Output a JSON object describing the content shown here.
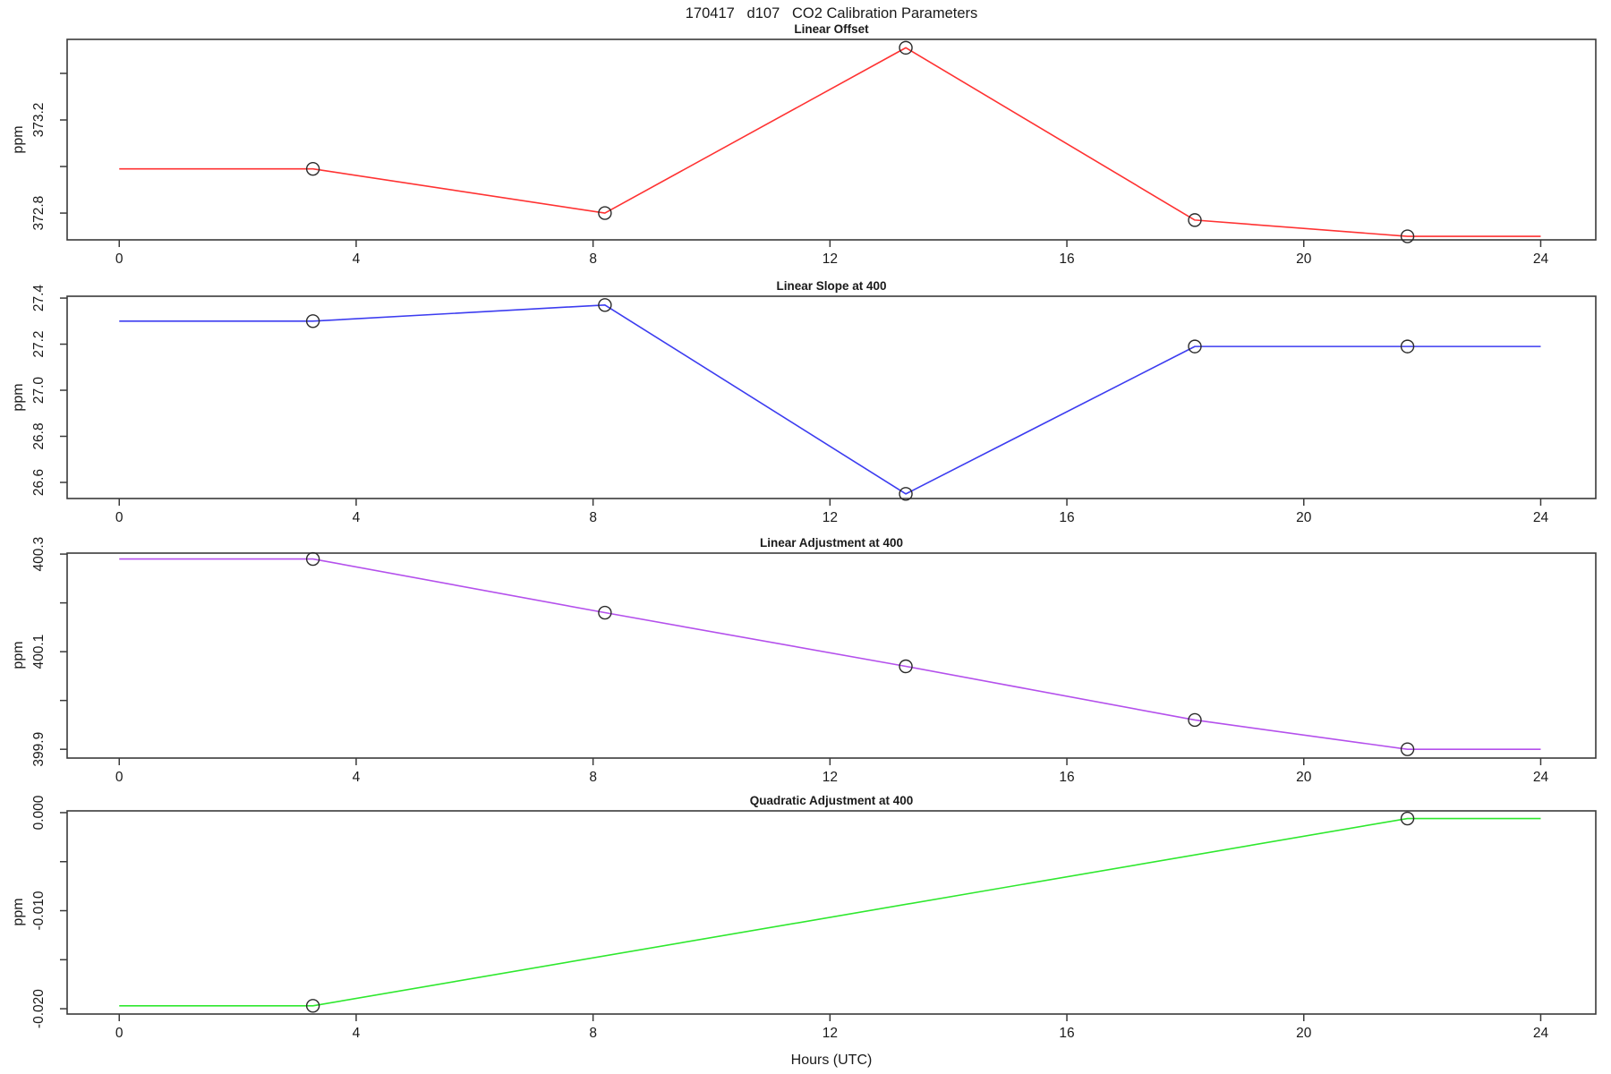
{
  "figure": {
    "title": "170417   d107   CO2 Calibration Parameters",
    "xlabel": "Hours (UTC)"
  },
  "chart_data": {
    "type": "line",
    "title": "170417   d107   CO2 Calibration Parameters",
    "xlabel": "Hours (UTC)",
    "x_ticks": [
      0,
      4,
      8,
      12,
      16,
      20,
      24
    ],
    "xlim": [
      -0.88,
      24.93
    ],
    "grid": false,
    "legend": "none",
    "marker": "open-circle",
    "panels": [
      {
        "title": "Linear Offset",
        "ylabel": "ppm",
        "color": "#ff3232",
        "ylim": [
          372.685,
          373.546
        ],
        "yticks": [
          {
            "value": 372.8,
            "label": "372.8"
          },
          {
            "value": 373.0,
            "label": ""
          },
          {
            "value": 373.2,
            "label": "373.2"
          },
          {
            "value": 373.4,
            "label": ""
          }
        ],
        "x": [
          3.27,
          8.2,
          13.28,
          18.16,
          21.75
        ],
        "y": [
          372.99,
          372.8,
          373.51,
          372.77,
          372.7
        ],
        "line_extends": {
          "x0": 0,
          "y0": 372.99,
          "x1": 24,
          "y1": 372.7
        }
      },
      {
        "title": "Linear Slope at 400",
        "ylabel": "ppm",
        "color": "#3c3cf0",
        "ylim": [
          26.53,
          27.408
        ],
        "yticks": [
          {
            "value": 26.6,
            "label": "26.6"
          },
          {
            "value": 26.8,
            "label": "26.8"
          },
          {
            "value": 27.0,
            "label": "27.0"
          },
          {
            "value": 27.2,
            "label": "27.2"
          },
          {
            "value": 27.4,
            "label": "27.4"
          }
        ],
        "x": [
          3.27,
          8.2,
          13.28,
          18.16,
          21.75
        ],
        "y": [
          27.3,
          27.37,
          26.55,
          27.19,
          27.19
        ],
        "line_extends": {
          "x0": 0,
          "y0": 27.3,
          "x1": 24,
          "y1": 27.19
        }
      },
      {
        "title": "Linear Adjustment at 400",
        "ylabel": "ppm",
        "color": "#b450ec",
        "ylim": [
          399.882,
          400.302
        ],
        "yticks": [
          {
            "value": 399.9,
            "label": "399.9"
          },
          {
            "value": 400.0,
            "label": ""
          },
          {
            "value": 400.1,
            "label": "400.1"
          },
          {
            "value": 400.2,
            "label": ""
          },
          {
            "value": 400.3,
            "label": "400.3"
          }
        ],
        "x": [
          3.27,
          8.2,
          13.28,
          18.16,
          21.75
        ],
        "y": [
          400.29,
          400.18,
          400.07,
          399.96,
          399.9
        ],
        "line_extends": {
          "x0": 0,
          "y0": 400.29,
          "x1": 24,
          "y1": 399.9
        }
      },
      {
        "title": "Quadratic Adjustment at 400",
        "ylabel": "ppm",
        "color": "#2ee82e",
        "ylim": [
          -0.02054,
          0.00018
        ],
        "yticks": [
          {
            "value": -0.02,
            "label": "-0.020"
          },
          {
            "value": -0.015,
            "label": ""
          },
          {
            "value": -0.01,
            "label": "-0.010"
          },
          {
            "value": -0.005,
            "label": ""
          },
          {
            "value": 0.0,
            "label": "0.000"
          }
        ],
        "x": [
          3.27,
          21.75
        ],
        "y": [
          -0.0197,
          -0.0006
        ],
        "line_extends": {
          "x0": 0,
          "y0": -0.0197,
          "x1": 24,
          "y1": -0.0006
        }
      }
    ]
  }
}
